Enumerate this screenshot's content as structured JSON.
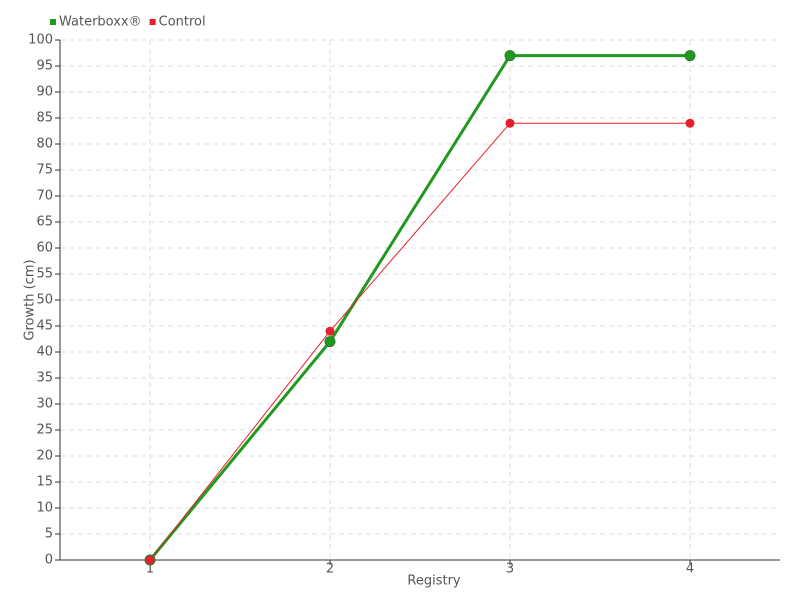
{
  "chart_data": {
    "type": "line",
    "x_label": "Registry",
    "y_label": "Growth (cm)",
    "categories": [
      "1",
      "2",
      "3",
      "4"
    ],
    "series": [
      {
        "name": "Waterboxx®",
        "color": "#1f9a1f",
        "values": [
          0,
          42,
          97,
          97
        ]
      },
      {
        "name": "Control",
        "color": "#e5202c",
        "values": [
          0,
          44,
          84,
          84
        ]
      }
    ],
    "ylim": [
      0,
      100
    ],
    "yticks": [
      0,
      5,
      10,
      15,
      20,
      25,
      30,
      35,
      40,
      45,
      50,
      55,
      60,
      65,
      70,
      75,
      80,
      85,
      90,
      95,
      100
    ],
    "grid": true,
    "legend": "top-left"
  }
}
